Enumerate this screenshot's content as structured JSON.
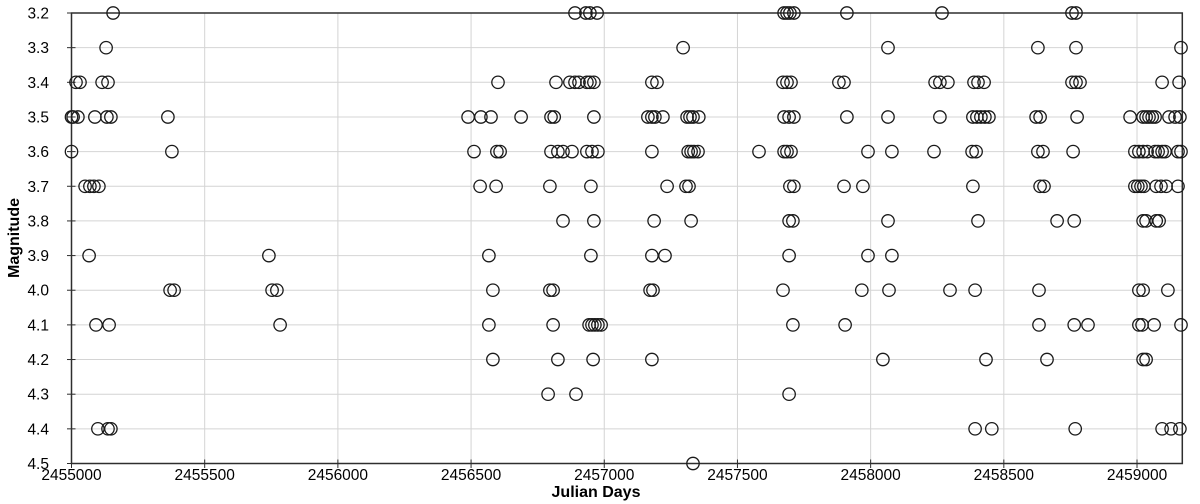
{
  "chart_data": {
    "type": "scatter",
    "title": "",
    "xlabel": "Julian Days",
    "ylabel": "Magnitude",
    "marker": "open-circle",
    "marker_color": "#1a1a1a",
    "grid_color": "#d4d4d4",
    "axis_color": "#2e2e2e",
    "x_axis": {
      "min": 2455000,
      "max": 2459170,
      "tick_values": [
        2455000,
        2455500,
        2456000,
        2456500,
        2457000,
        2457500,
        2458000,
        2458500,
        2459000
      ],
      "tick_labels": [
        "2455000",
        "2455500",
        "2456000",
        "2456500",
        "2457000",
        "2457500",
        "2458000",
        "2458500",
        "2459000"
      ],
      "gridlines": [
        2455500,
        2456000,
        2456500,
        2457000,
        2457500,
        2458000,
        2458500,
        2459000
      ]
    },
    "y_axis": {
      "top": 3.2,
      "bottom": 4.5,
      "step": 0.1,
      "inverted": true,
      "tick_labels": [
        "3.2",
        "3.3",
        "3.4",
        "3.5",
        "3.6",
        "3.7",
        "3.8",
        "3.9",
        "4.0",
        "4.1",
        "4.2",
        "4.3",
        "4.4",
        "4.5"
      ]
    },
    "series": [
      {
        "magnitude": 3.2,
        "julian_days": [
          2455156,
          2456890,
          2456931,
          2456946,
          2456973,
          2457675,
          2457686,
          2457697,
          2457712,
          2457911,
          2458268,
          2458756,
          2458771
        ]
      },
      {
        "magnitude": 3.3,
        "julian_days": [
          2455130,
          2457296,
          2458065,
          2458628,
          2458771,
          2459165
        ]
      },
      {
        "magnitude": 3.4,
        "julian_days": [
          2455017,
          2455032,
          2455115,
          2455137,
          2456601,
          2456819,
          2456871,
          2456890,
          2456905,
          2456935,
          2456946,
          2456961,
          2457179,
          2457198,
          2457671,
          2457686,
          2457701,
          2457881,
          2457900,
          2458242,
          2458260,
          2458290,
          2458388,
          2458403,
          2458426,
          2458756,
          2458771,
          2458786,
          2459094,
          2459158
        ]
      },
      {
        "magnitude": 3.5,
        "julian_days": [
          2455000,
          2455006,
          2455024,
          2455088,
          2455133,
          2455148,
          2455362,
          2456489,
          2456537,
          2456575,
          2456688,
          2456800,
          2456812,
          2456961,
          2457164,
          2457179,
          2457190,
          2457220,
          2457311,
          2457322,
          2457333,
          2457355,
          2457675,
          2457694,
          2457712,
          2457911,
          2458065,
          2458260,
          2458384,
          2458399,
          2458414,
          2458429,
          2458444,
          2458621,
          2458636,
          2458775,
          2458974,
          2459023,
          2459034,
          2459045,
          2459057,
          2459068,
          2459120,
          2459143,
          2459161
        ]
      },
      {
        "magnitude": 3.6,
        "julian_days": [
          2455000,
          2455377,
          2456511,
          2456597,
          2456609,
          2456800,
          2456826,
          2456845,
          2456879,
          2456935,
          2456954,
          2456976,
          2457179,
          2457315,
          2457326,
          2457337,
          2457352,
          2457581,
          2457675,
          2457686,
          2457701,
          2457990,
          2458080,
          2458238,
          2458381,
          2458396,
          2458628,
          2458647,
          2458760,
          2458992,
          2459007,
          2459023,
          2459038,
          2459068,
          2459079,
          2459094,
          2459105,
          2459154,
          2459165
        ]
      },
      {
        "magnitude": 3.7,
        "julian_days": [
          2455051,
          2455069,
          2455084,
          2455103,
          2456534,
          2456594,
          2456796,
          2456950,
          2457236,
          2457307,
          2457318,
          2457697,
          2457712,
          2457900,
          2457971,
          2458384,
          2458636,
          2458651,
          2458992,
          2459003,
          2459015,
          2459026,
          2459072,
          2459090,
          2459109,
          2459154
        ]
      },
      {
        "magnitude": 3.8,
        "julian_days": [
          2456845,
          2456961,
          2457187,
          2457326,
          2457694,
          2457708,
          2458065,
          2458403,
          2458700,
          2458764,
          2459023,
          2459034,
          2459072,
          2459083
        ]
      },
      {
        "magnitude": 3.9,
        "julian_days": [
          2455066,
          2455741,
          2456567,
          2456950,
          2457179,
          2457228,
          2457694,
          2457990,
          2458080
        ]
      },
      {
        "magnitude": 4.0,
        "julian_days": [
          2455370,
          2455385,
          2455753,
          2455771,
          2456582,
          2456796,
          2456808,
          2457172,
          2457183,
          2457671,
          2457967,
          2458069,
          2458298,
          2458392,
          2458632,
          2459007,
          2459023,
          2459116
        ]
      },
      {
        "magnitude": 4.1,
        "julian_days": [
          2455092,
          2455141,
          2455783,
          2456567,
          2456808,
          2456943,
          2456954,
          2456965,
          2456976,
          2456988,
          2457708,
          2457904,
          2458632,
          2458764,
          2458816,
          2459007,
          2459019,
          2459064,
          2459165
        ]
      },
      {
        "magnitude": 4.2,
        "julian_days": [
          2456582,
          2456826,
          2456958,
          2457179,
          2458046,
          2458433,
          2458662,
          2459023,
          2459034
        ]
      },
      {
        "magnitude": 4.3,
        "julian_days": [
          2456789,
          2456894,
          2457694
        ]
      },
      {
        "magnitude": 4.4,
        "julian_days": [
          2455099,
          2455137,
          2455148,
          2458392,
          2458455,
          2458768,
          2459094,
          2459128,
          2459161
        ]
      },
      {
        "magnitude": 4.5,
        "julian_days": [
          2457333
        ]
      }
    ]
  }
}
